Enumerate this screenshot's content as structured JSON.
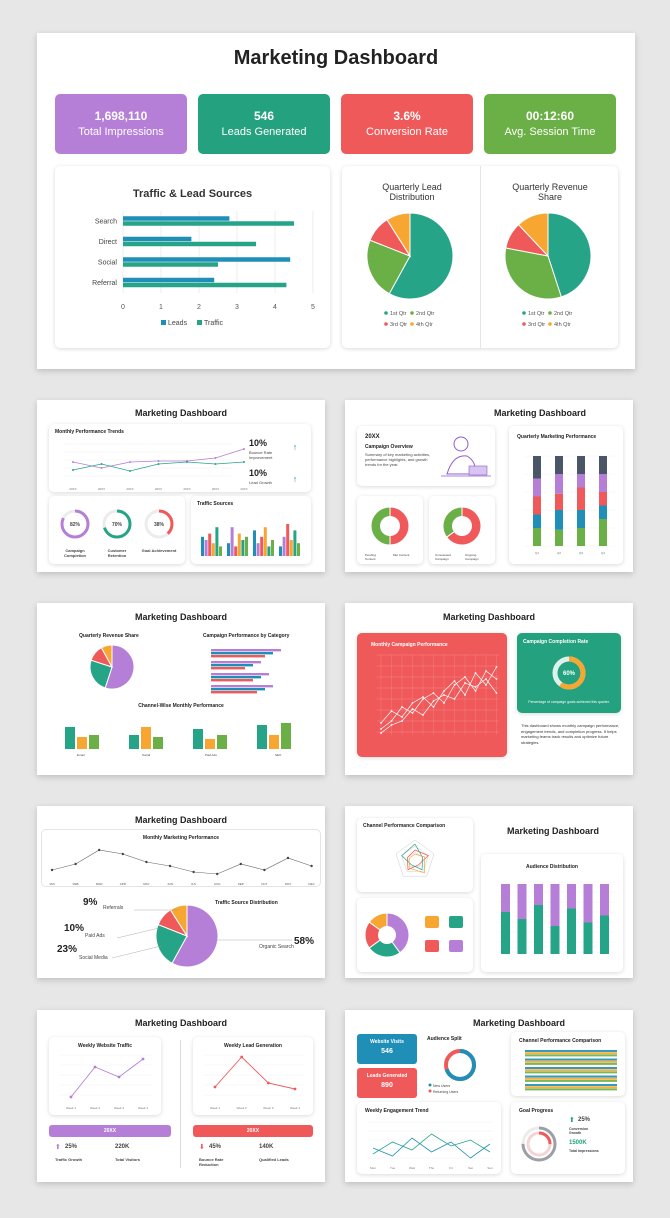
{
  "main": {
    "title": "Marketing Dashboard",
    "kpis": [
      {
        "value": "1,698,110",
        "label": "Total Impressions",
        "color": "#b57fd8"
      },
      {
        "value": "546",
        "label": "Leads Generated",
        "color": "#24a17e"
      },
      {
        "value": "3.6%",
        "label": "Conversion Rate",
        "color": "#f0595a"
      },
      {
        "value": "00:12:60",
        "label": "Avg. Session Time",
        "color": "#6bb046"
      }
    ]
  },
  "chart_data": [
    {
      "type": "bar",
      "orientation": "horizontal",
      "title": "Traffic & Lead Sources",
      "categories": [
        "Search",
        "Direct",
        "Social",
        "Referral"
      ],
      "series": [
        {
          "name": "Leads",
          "values": [
            2.8,
            1.8,
            4.4,
            2.4
          ],
          "color": "#1f8fb8"
        },
        {
          "name": "Traffic",
          "values": [
            4.5,
            3.5,
            2.5,
            4.3
          ],
          "color": "#26a488"
        }
      ],
      "xlim": [
        0,
        5
      ],
      "xticks": [
        "0",
        "1",
        "2",
        "3",
        "4",
        "5"
      ],
      "legend": "bottom"
    },
    {
      "type": "pie",
      "title": "Quarterly Lead Distribution",
      "labels": [
        "1st Qtr",
        "2nd Qtr",
        "3rd Qtr",
        "4th Qtr"
      ],
      "values": [
        58,
        23,
        10,
        9
      ],
      "colors": [
        "#26a488",
        "#6bb046",
        "#f0595a",
        "#f7a731"
      ],
      "legend": "bottom"
    },
    {
      "type": "pie",
      "title": "Quarterly Revenue Share",
      "labels": [
        "1st Qtr",
        "2nd Qtr",
        "3rd Qtr",
        "4th Qtr"
      ],
      "values": [
        45,
        33,
        10,
        12
      ],
      "colors": [
        "#26a488",
        "#6bb046",
        "#f0595a",
        "#f7a731"
      ],
      "legend": "bottom"
    }
  ],
  "thumbs": {
    "t1": {
      "title": "Marketing Dashboard",
      "trend_title": "Monthly Performance Trends",
      "years": [
        "20XX",
        "20XX",
        "20XX",
        "20XX",
        "20XX",
        "20XX",
        "20XX"
      ],
      "stat1_value": "10%",
      "stat1_label": "Bounce Rate Improvement",
      "stat2_value": "10%",
      "stat2_label": "Lead Growth",
      "donuts": [
        {
          "value": "82%",
          "label": "Campaign Completion",
          "pct": 82,
          "color": "#b57fd8"
        },
        {
          "value": "70%",
          "label": "Customer Retention",
          "pct": 70,
          "color": "#26a488"
        },
        {
          "value": "38%",
          "label": "Goal Achievement",
          "pct": 38,
          "color": "#f0595a"
        }
      ],
      "traffic_title": "Traffic Sources"
    },
    "t2": {
      "title": "Marketing Dashboard",
      "year": "20XX",
      "overview_title": "Campaign Overview",
      "overview_text": "Summary of key marketing activities, performance highlights, and growth trends for the year.",
      "perf_title": "Quarterly Marketing Performance",
      "donut1": {
        "a": "50%",
        "b": "50%",
        "la": "Pending Content",
        "lb": "Met Content"
      },
      "donut2": {
        "a": "35%",
        "b": "65%",
        "la": "Unreviewed Campaign",
        "lb": "Ongoing Campaign"
      }
    },
    "t3": {
      "title": "Marketing Dashboard",
      "rev_title": "Quarterly Revenue Share",
      "cat_title": "Campaign Performance by Category",
      "channel_title": "Channel-Wise Monthly Performance",
      "channel_cats": [
        "Email",
        "Social",
        "Paid Ads",
        "SEO"
      ]
    },
    "t4": {
      "title": "Marketing Dashboard",
      "monthly_title": "Monthly Campaign Performance",
      "completion_title": "Campaign Completion Rate",
      "completion_value": "60%",
      "completion_pct": 60,
      "completion_text": "Percentage of campaign goals achieved this quarter.",
      "desc": "This dashboard shows monthly campaign performance, engagement trends, and completion progress. It helps marketing teams track results and optimize future strategies."
    },
    "t5": {
      "title": "Marketing Dashboard",
      "monthly_title": "Monthly Marketing Performance",
      "months": [
        "JAN",
        "FEB",
        "MAR",
        "APR",
        "MAY",
        "JUN",
        "JUL",
        "AUG",
        "SEP",
        "OCT",
        "NOV",
        "DEC"
      ],
      "source_title": "Traffic Source Distribution",
      "slices": [
        {
          "value": "9%",
          "label": "Referrals"
        },
        {
          "value": "10%",
          "label": "Paid Ads"
        },
        {
          "value": "23%",
          "label": "Social Media"
        },
        {
          "value": "58%",
          "label": "Organic Search"
        }
      ]
    },
    "t6": {
      "title": "Marketing Dashboard",
      "channel_title": "Channel Performance Comparison",
      "audience_title": "Audience Distribution"
    },
    "t7": {
      "title": "Marketing Dashboard",
      "traffic_title": "Weekly Website Traffic",
      "lead_title": "Weekly Lead Generation",
      "weeks": [
        "Week 1",
        "Week 2",
        "Week 3",
        "Week 4"
      ],
      "year": "20XX",
      "a_value": "25%",
      "a_label": "Traffic Growth",
      "b_value": "220K",
      "b_label": "Total Visitors",
      "c_value": "45%",
      "c_label": "Bounce Rate Reduction",
      "d_value": "140K",
      "d_label": "Qualified Leads"
    },
    "t8": {
      "title": "Marketing Dashboard",
      "visits_label": "Website Visits",
      "visits_value": "546",
      "leads_label": "Leads Generated",
      "leads_value": "890",
      "audience_title": "Audience Split",
      "audience_legend": [
        "New Users",
        "Returning Users"
      ],
      "channel_title": "Channel Performance Comparison",
      "weekly_title": "Weekly Engagement Trend",
      "days": [
        "Mon",
        "Tue",
        "Wed",
        "Thu",
        "Fri",
        "Sat",
        "Sun"
      ],
      "goal_title": "Goal Progress",
      "goal_pct": "25%",
      "goal_label": "Conversion Growth",
      "goal_value": "1500K",
      "goal_value_label": "Total Impressions"
    }
  }
}
